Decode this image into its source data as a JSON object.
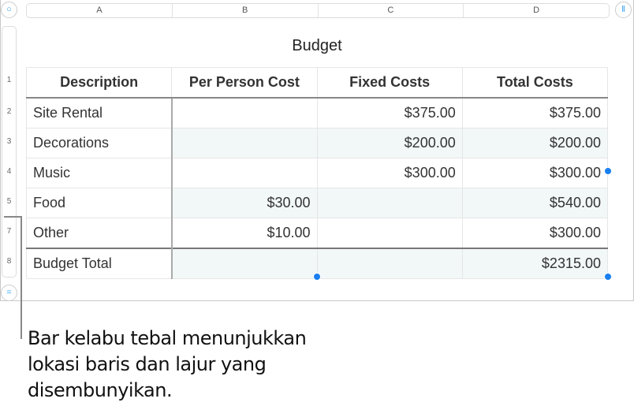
{
  "columns": [
    "A",
    "B",
    "C",
    "D"
  ],
  "row_numbers": [
    "1",
    "2",
    "3",
    "4",
    "5",
    "7",
    "8"
  ],
  "table_title": "Budget",
  "headers": [
    "Description",
    "Per Person Cost",
    "Fixed Costs",
    "Total Costs"
  ],
  "rows": [
    [
      "Site Rental",
      "",
      "$375.00",
      "$375.00"
    ],
    [
      "Decorations",
      "",
      "$200.00",
      "$200.00"
    ],
    [
      "Music",
      "",
      "$300.00",
      "$300.00"
    ],
    [
      "Food",
      "$30.00",
      "",
      "$540.00"
    ],
    [
      "Other",
      "$10.00",
      "",
      "$300.00"
    ],
    [
      "Budget Total",
      "",
      "",
      "$2315.00"
    ]
  ],
  "icons": {
    "select_table": "circle-icon",
    "column_handle": "pause-icon",
    "row_handle": "equals-icon"
  },
  "caption": [
    "Bar kelabu tebal menunjukkan",
    "lokasi baris dan lajur yang",
    "disembunyikan."
  ],
  "colors": {
    "accent": "#1a7ff0",
    "shade": "#f2f7f7"
  }
}
